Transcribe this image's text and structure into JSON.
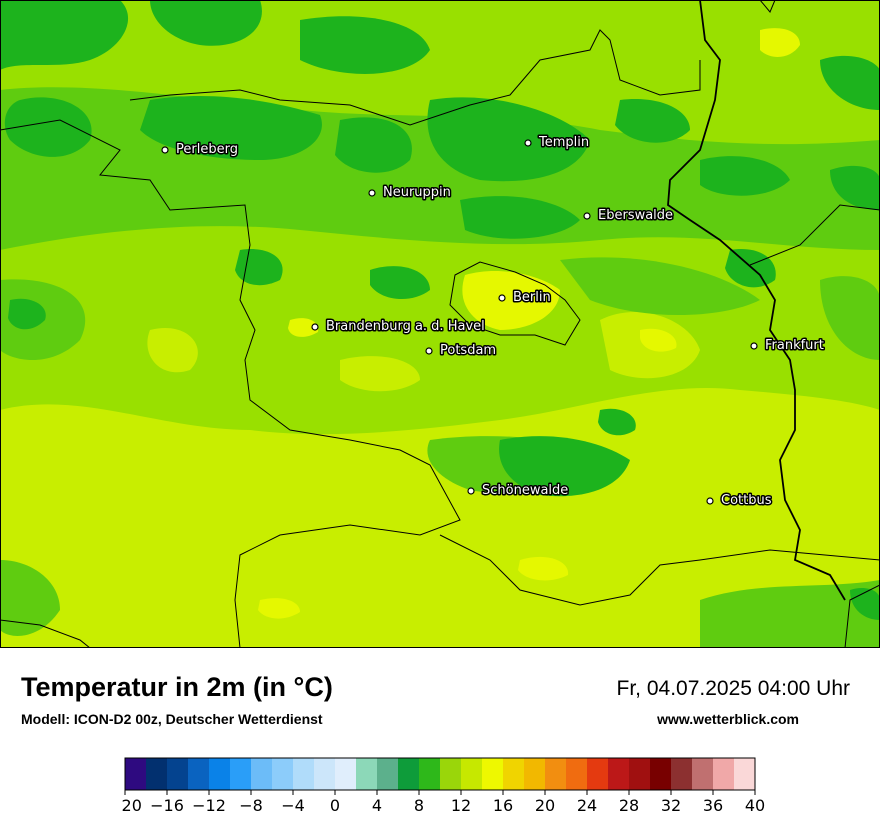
{
  "header": {
    "title": "Temperatur in 2m (in °C)",
    "model": "Modell: ICON-D2 00z, Deutscher Wetterdienst",
    "datetime": "Fr, 04.07.2025 04:00 Uhr",
    "website": "www.wetterblick.com"
  },
  "map": {
    "field_value_range_c": [
      10,
      16
    ],
    "colors": {
      "dark_green": "#1db31d",
      "green": "#5fcc10",
      "light_green": "#99e000",
      "yellow_green": "#c8ee00",
      "yellow": "#e5f800",
      "border": "#000000"
    },
    "cities": [
      {
        "name": "Perleberg"
      },
      {
        "name": "Templin"
      },
      {
        "name": "Neuruppin"
      },
      {
        "name": "Eberswalde"
      },
      {
        "name": "Berlin"
      },
      {
        "name": "Brandenburg a. d. Havel"
      },
      {
        "name": "Potsdam"
      },
      {
        "name": "Frankfurt"
      },
      {
        "name": "Schönewalde"
      },
      {
        "name": "Cottbus"
      }
    ]
  },
  "legend": {
    "ticks": [
      "−20",
      "−16",
      "−12",
      "−8",
      "−4",
      "0",
      "4",
      "8",
      "12",
      "16",
      "20",
      "24",
      "28",
      "32",
      "36",
      "40"
    ],
    "colors": [
      "#2e0a80",
      "#02306f",
      "#04438f",
      "#0a63c0",
      "#0a82e8",
      "#2a9ef8",
      "#6cbcf8",
      "#8cccfa",
      "#b0dcfa",
      "#cce6fa",
      "#e0eefc",
      "#8cd8b8",
      "#5cb08c",
      "#0e9c3a",
      "#2eb81a",
      "#9ad60a",
      "#c6e800",
      "#eef800",
      "#f0d400",
      "#f2b800",
      "#f28e10",
      "#f06c10",
      "#e43a10",
      "#bc1818",
      "#a01010",
      "#780000",
      "#8c3030",
      "#c07070",
      "#f0a8a8",
      "#fad8d8"
    ]
  }
}
